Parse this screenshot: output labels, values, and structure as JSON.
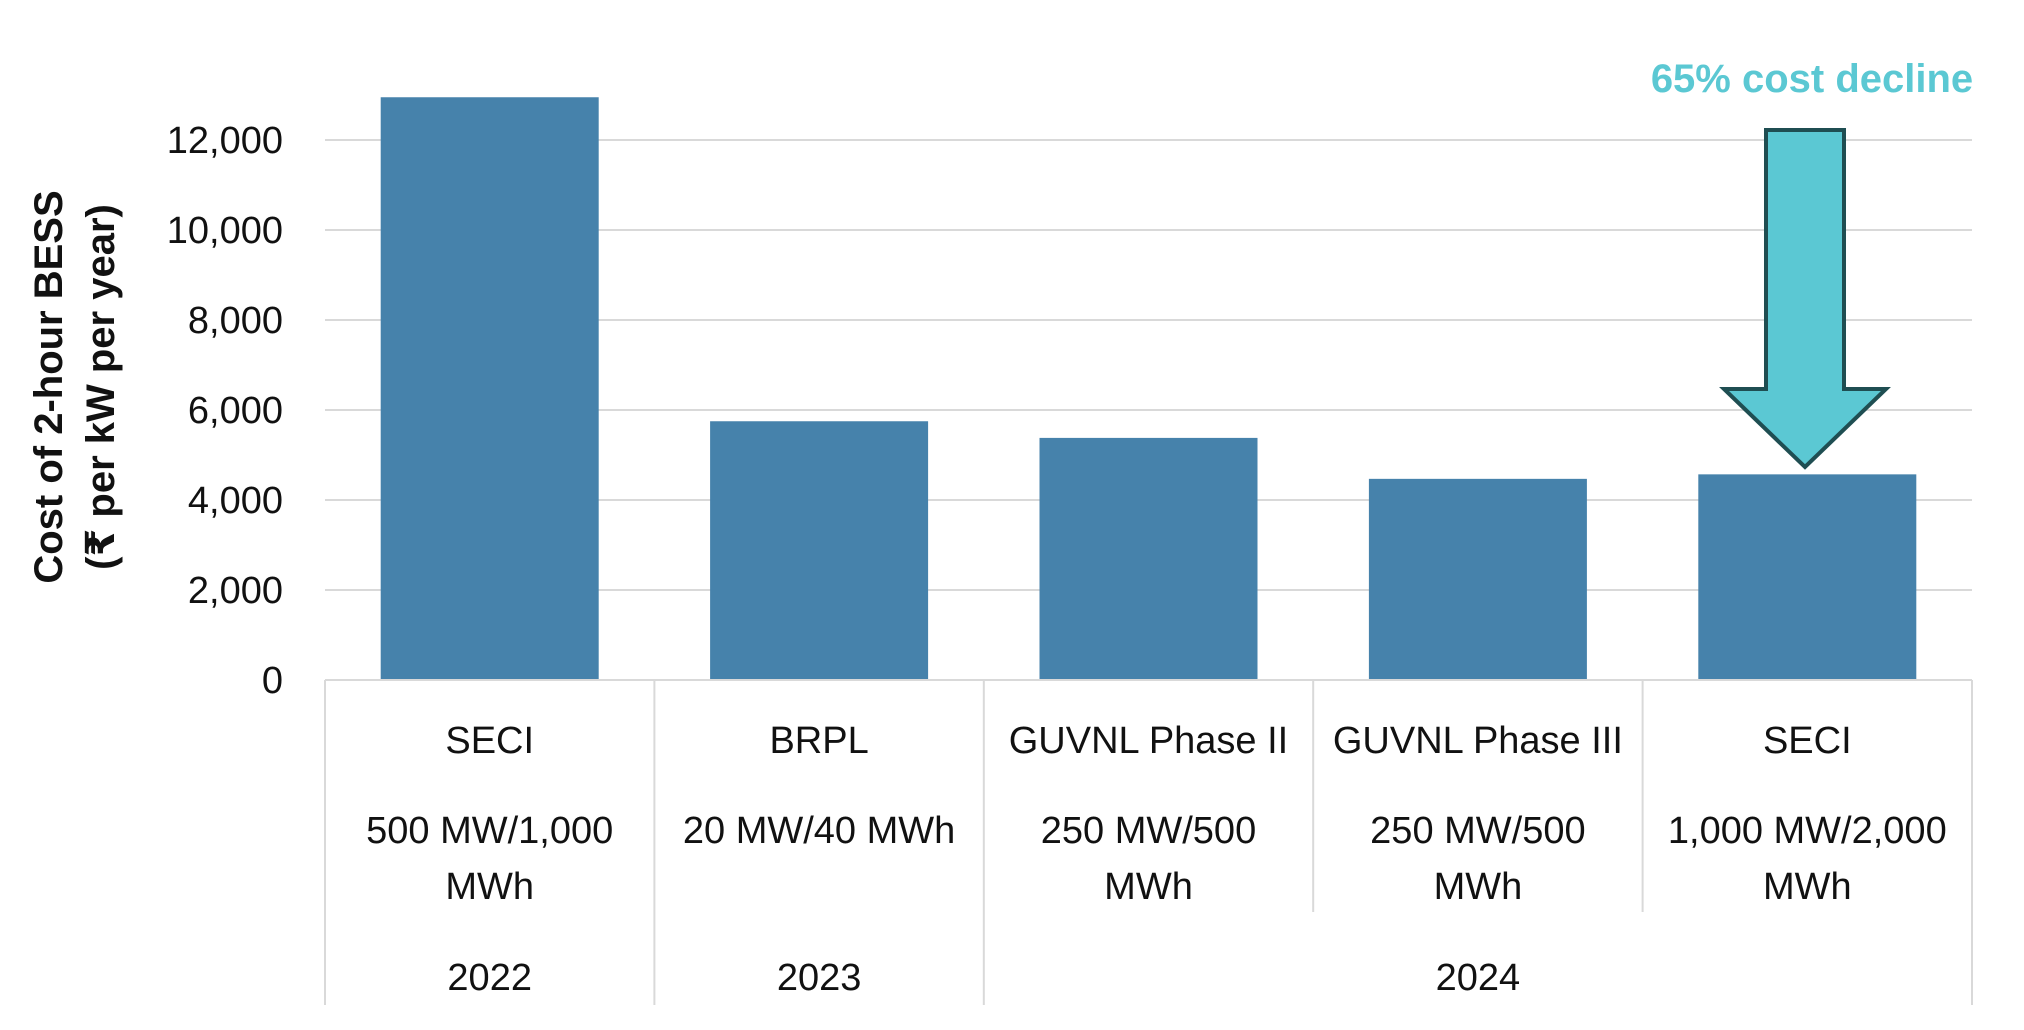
{
  "chart_data": {
    "type": "bar",
    "ylabel_line1": "Cost of 2-hour BESS",
    "ylabel_line2": "(₹ per kW per year)",
    "ylim": [
      0,
      13000
    ],
    "yticks": [
      0,
      2000,
      4000,
      6000,
      8000,
      10000,
      12000
    ],
    "ytick_labels": [
      "0",
      "2,000",
      "4,000",
      "6,000",
      "8,000",
      "10,000",
      "12,000"
    ],
    "grid": true,
    "bar_color": "#4682AB",
    "categories": [
      {
        "name": "SECI",
        "capacity_line1": "500 MW/1,000",
        "capacity_line2": "MWh"
      },
      {
        "name": "BRPL",
        "capacity_line1": "20 MW/40 MWh",
        "capacity_line2": ""
      },
      {
        "name": "GUVNL Phase II",
        "capacity_line1": "250 MW/500",
        "capacity_line2": "MWh"
      },
      {
        "name": "GUVNL Phase III",
        "capacity_line1": "250 MW/500",
        "capacity_line2": "MWh"
      },
      {
        "name": "SECI",
        "capacity_line1": "1,000 MW/2,000",
        "capacity_line2": "MWh"
      }
    ],
    "values": [
      12950,
      5750,
      5380,
      4470,
      4570
    ],
    "year_groups": [
      {
        "label": "2022",
        "categories": [
          0
        ]
      },
      {
        "label": "2023",
        "categories": [
          1
        ]
      },
      {
        "label": "2024",
        "categories": [
          2,
          3,
          4
        ]
      }
    ],
    "annotation": {
      "text": "65% cost decline",
      "color": "#5BC8D3",
      "arrow_color": "#5BC8D3",
      "arrow_stroke": "#1F4E52"
    }
  }
}
